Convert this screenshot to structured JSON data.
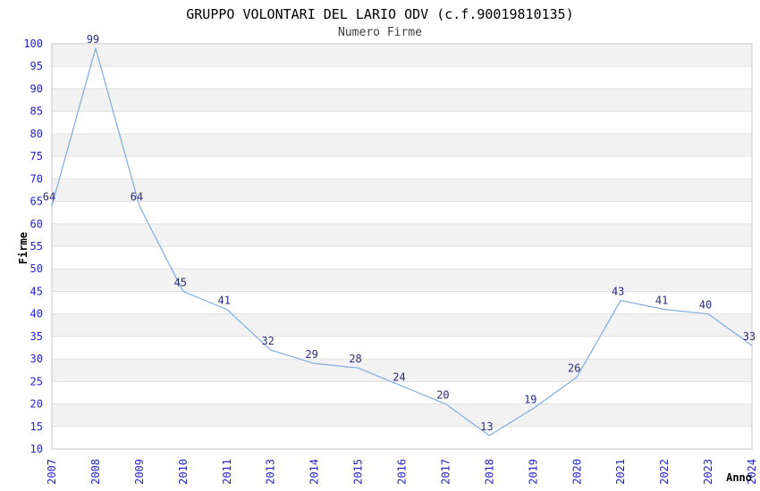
{
  "page": {
    "background": "#ffffff"
  },
  "chart_data": {
    "type": "line",
    "title": "GRUPPO VOLONTARI DEL LARIO ODV (c.f.90019810135)",
    "subtitle": "Numero Firme",
    "xlabel": "Anno",
    "ylabel": "Firme",
    "x": [
      "2007",
      "2008",
      "2009",
      "2010",
      "2011",
      "2013",
      "2014",
      "2015",
      "2016",
      "2017",
      "2018",
      "2019",
      "2020",
      "2021",
      "2022",
      "2023",
      "2024"
    ],
    "series": [
      {
        "name": "Numero Firme",
        "values": [
          64,
          99,
          64,
          45,
          41,
          32,
          29,
          28,
          24,
          20,
          13,
          19,
          26,
          43,
          41,
          40,
          33
        ]
      }
    ],
    "ylim": [
      10,
      100
    ],
    "ytick_step": 5,
    "grid": true,
    "background_bands": true,
    "legend_position": "none",
    "data_labels_visible": true,
    "colors": {
      "line": "#7cade0",
      "tick_label": "#2323c8",
      "data_label": "#2b2b80",
      "band": "#f2f2f2",
      "grid": "#e0e0e0",
      "border": "#c8c8c8",
      "title": "#000000",
      "subtitle": "#404040",
      "axis_title": "#000000"
    }
  }
}
